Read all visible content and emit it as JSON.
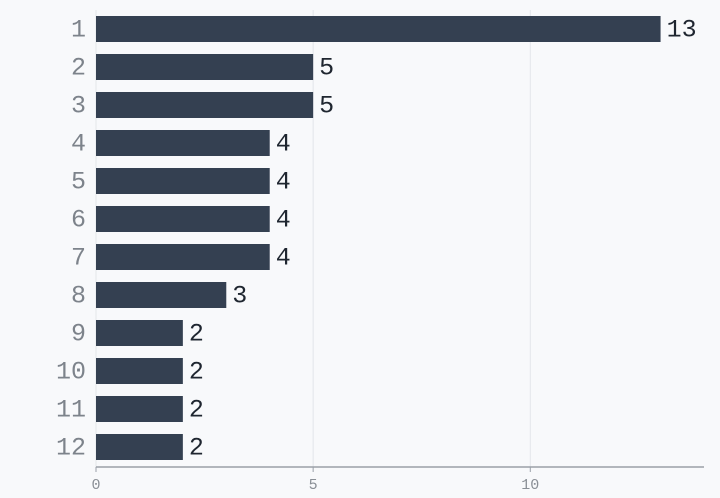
{
  "chart_data": {
    "type": "bar",
    "orientation": "horizontal",
    "categories": [
      "1",
      "2",
      "3",
      "4",
      "5",
      "6",
      "7",
      "8",
      "9",
      "10",
      "11",
      "12"
    ],
    "values": [
      13,
      5,
      5,
      4,
      4,
      4,
      4,
      3,
      2,
      2,
      2,
      2
    ],
    "color": "#344051",
    "xlim": [
      0,
      14
    ],
    "xticks": [
      0,
      5,
      10
    ],
    "grid": true
  }
}
